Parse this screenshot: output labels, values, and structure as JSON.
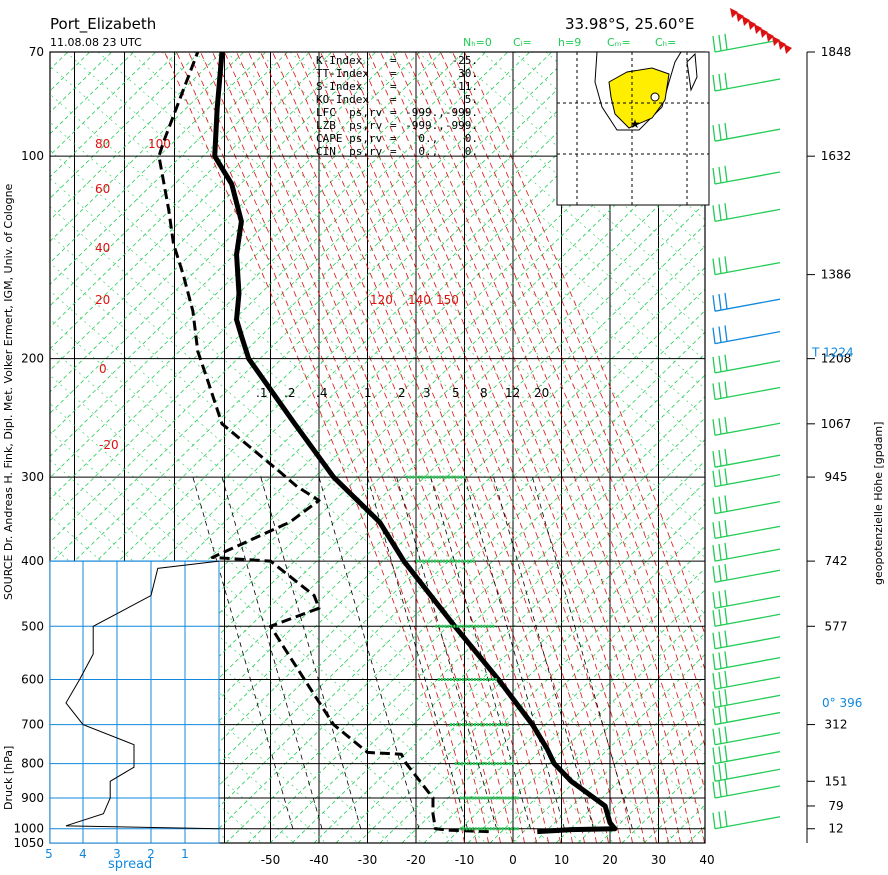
{
  "header": {
    "station": "Port_Elizabeth",
    "datetime": "11.08.08  23 UTC",
    "coords": "33.98°S, 25.60°E",
    "cloud_labels": [
      "Nₕ=0",
      "Cₗ=",
      "h=9",
      "Cₘ=",
      "Cₕ="
    ]
  },
  "indices": [
    {
      "name": "K-Index",
      "sep": "=",
      "value": "-25."
    },
    {
      "name": "TT-Index",
      "sep": "=",
      "value": "30."
    },
    {
      "name": "S-Index",
      "sep": "=",
      "value": "-11."
    },
    {
      "name": "KO-Index",
      "sep": "=",
      "value": "5."
    },
    {
      "name": "LFC  ps,rv",
      "sep": "=",
      "value": "-999.,-999."
    },
    {
      "name": "LZB  ps,rv",
      "sep": "=",
      "value": "-999.,-999."
    },
    {
      "name": "CAPE ps,rv",
      "sep": "=",
      "value": "0.,    0."
    },
    {
      "name": "CIN  ps,rv",
      "sep": "=",
      "value": "0.,    0."
    }
  ],
  "labels": {
    "left_axis": "Druck [hPa]",
    "source": "SOURCE Dr. Andreas H. Fink, Dipl. Met. Volker Ermert, IGM, Univ. of Cologne",
    "right_axis": "geopotenzielle Höhe [gpdam]",
    "spread_label": "spread",
    "tropopause": "T   1224",
    "freezing": "0°  396"
  },
  "colors": {
    "green": "#22cc55",
    "red": "#dd1111",
    "blue": "#1188dd",
    "yellow": "#ffee00",
    "black": "#000000"
  },
  "chart_data": {
    "type": "line",
    "title": "Port_Elizabeth",
    "xlabel": "",
    "ylabel": "Druck [hPa]",
    "x_ticks": [
      -50,
      -40,
      -30,
      -20,
      -10,
      0,
      10,
      20,
      30,
      40
    ],
    "xlim": [
      -50,
      40
    ],
    "y_scale": "log",
    "ylim": [
      1050,
      70
    ],
    "pressure_levels": [
      1050,
      1000,
      900,
      800,
      700,
      600,
      500,
      400,
      300,
      200,
      100,
      70
    ],
    "geopotential_ticks": [
      {
        "p": 1000,
        "h": "12"
      },
      {
        "p": 925,
        "h": "79"
      },
      {
        "p": 850,
        "h": "151"
      },
      {
        "p": 700,
        "h": "312"
      },
      {
        "p": 500,
        "h": "577"
      },
      {
        "p": 400,
        "h": "742"
      },
      {
        "p": 300,
        "h": "945"
      },
      {
        "p": 250,
        "h": "1067"
      },
      {
        "p": 200,
        "h": "1208"
      },
      {
        "p": 150,
        "h": "1386"
      },
      {
        "p": 100,
        "h": "1632"
      },
      {
        "p": 70,
        "h": "1848"
      }
    ],
    "geopotential_marked_levels": [
      "1224",
      "396"
    ],
    "theta_labels_left": [
      "80",
      "100",
      "60",
      "40",
      "20",
      "0",
      "-20"
    ],
    "theta_labels_right": [
      "120",
      "140",
      "150"
    ],
    "mixing_ratio_labels": [
      ".1",
      ".2",
      ".4",
      "1",
      "2",
      "3",
      "5",
      "8",
      "12",
      "20"
    ],
    "spread_ticks": [
      "5",
      "4",
      "3",
      "2",
      "1"
    ],
    "series": [
      {
        "name": "temperature",
        "points": [
          [
            1010,
            5
          ],
          [
            1003,
            12
          ],
          [
            1000,
            21
          ],
          [
            980,
            20
          ],
          [
            925,
            19
          ],
          [
            850,
            12
          ],
          [
            800,
            8.5
          ],
          [
            760,
            7
          ],
          [
            700,
            4
          ],
          [
            600,
            -3
          ],
          [
            500,
            -12
          ],
          [
            400,
            -22.5
          ],
          [
            350,
            -27.5
          ],
          [
            300,
            -37
          ],
          [
            250,
            -45
          ],
          [
            200,
            -54.5
          ],
          [
            185,
            -56
          ],
          [
            175,
            -57
          ],
          [
            160,
            -56.5
          ],
          [
            140,
            -57
          ],
          [
            125,
            -56
          ],
          [
            110,
            -58
          ],
          [
            100,
            -61.5
          ],
          [
            85,
            -61
          ],
          [
            70,
            -60
          ]
        ]
      },
      {
        "name": "dewpoint",
        "points": [
          [
            1010,
            -5
          ],
          [
            1005,
            -13
          ],
          [
            1000,
            -16
          ],
          [
            950,
            -16.5
          ],
          [
            900,
            -16.5
          ],
          [
            800,
            -22
          ],
          [
            775,
            -23
          ],
          [
            770,
            -30
          ],
          [
            700,
            -37
          ],
          [
            600,
            -43
          ],
          [
            500,
            -50
          ],
          [
            470,
            -40
          ],
          [
            450,
            -41
          ],
          [
            400,
            -50
          ],
          [
            395,
            -62
          ],
          [
            350,
            -46
          ],
          [
            325,
            -40
          ],
          [
            310,
            -44.5
          ],
          [
            295,
            -48
          ],
          [
            250,
            -60
          ],
          [
            215,
            -63
          ],
          [
            195,
            -65
          ],
          [
            170,
            -66
          ],
          [
            150,
            -68
          ],
          [
            135,
            -70
          ],
          [
            120,
            -71
          ],
          [
            100,
            -73
          ],
          [
            95,
            -72
          ],
          [
            70,
            -65
          ]
        ]
      }
    ],
    "spread_series": {
      "name": "spread",
      "points": [
        [
          1000,
          0
        ],
        [
          990,
          4.5
        ],
        [
          950,
          3.4
        ],
        [
          900,
          3.2
        ],
        [
          850,
          3.2
        ],
        [
          810,
          2.5
        ],
        [
          750,
          2.5
        ],
        [
          700,
          4
        ],
        [
          650,
          4.5
        ],
        [
          600,
          4.1
        ],
        [
          550,
          3.7
        ],
        [
          500,
          3.7
        ],
        [
          450,
          2
        ],
        [
          410,
          1.8
        ],
        [
          400,
          0
        ]
      ]
    },
    "wind_barbs_note": "wind barbs shown on right side, green and blue"
  }
}
